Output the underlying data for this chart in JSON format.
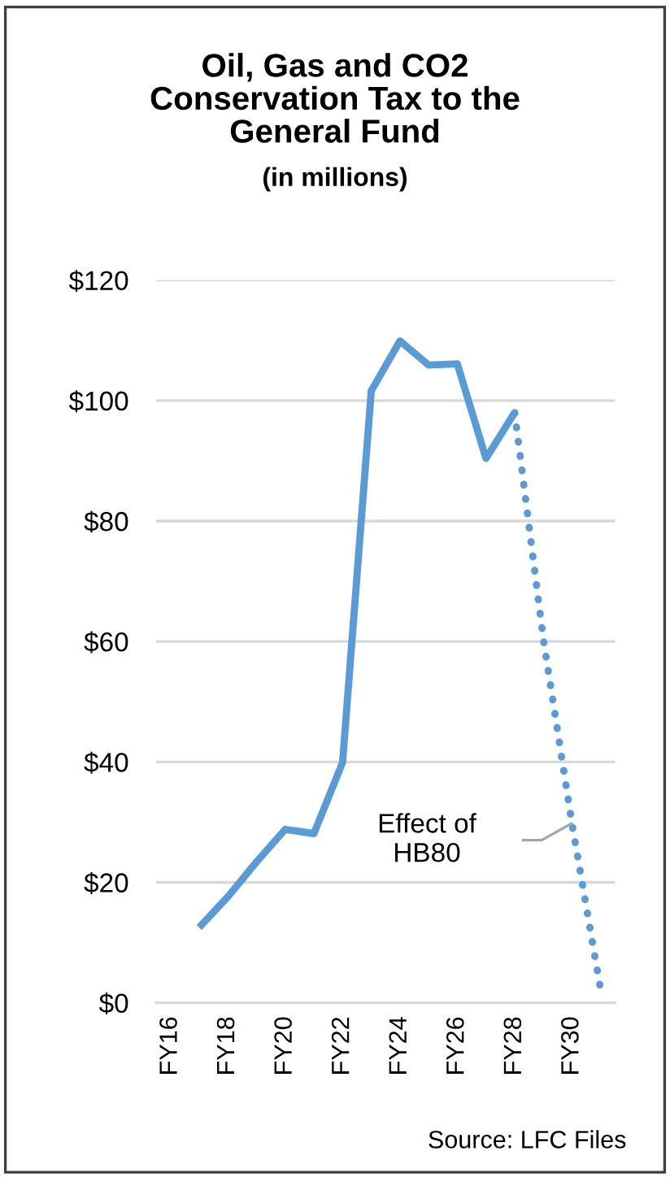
{
  "chart_data": {
    "type": "line",
    "title": "Oil, Gas and CO2\nConservation Tax to the\nGeneral Fund",
    "subtitle": "(in millions)",
    "categories": [
      "FY16",
      null,
      "FY18",
      null,
      "FY20",
      null,
      "FY22",
      null,
      "FY24",
      null,
      "FY26",
      null,
      "FY28",
      null,
      "FY30",
      null
    ],
    "series": [
      {
        "color": "#5b9bd5",
        "line_style": "solid",
        "values": [
          null,
          12.5,
          17.6,
          23.4,
          28.8,
          28.1,
          39.9,
          101.6,
          109.9,
          105.9,
          106.1,
          90.4,
          98.0,
          null,
          null,
          null
        ]
      },
      {
        "color": "#5b9bd5",
        "line_style": "dotted",
        "values": [
          null,
          null,
          null,
          null,
          null,
          null,
          null,
          null,
          null,
          null,
          null,
          null,
          98.0,
          60.4,
          29.7,
          2.1
        ]
      }
    ],
    "ylim": [
      0,
      120
    ],
    "yticks": [
      {
        "value": 0,
        "label": "$0"
      },
      {
        "value": 20,
        "label": "$20"
      },
      {
        "value": 40,
        "label": "$40"
      },
      {
        "value": 60,
        "label": "$60"
      },
      {
        "value": 80,
        "label": "$80"
      },
      {
        "value": 100,
        "label": "$100"
      },
      {
        "value": 120,
        "label": "$120"
      }
    ],
    "grid": "y",
    "annotations": [
      "Effect of\nHB80",
      "Source: LFC Files"
    ]
  }
}
